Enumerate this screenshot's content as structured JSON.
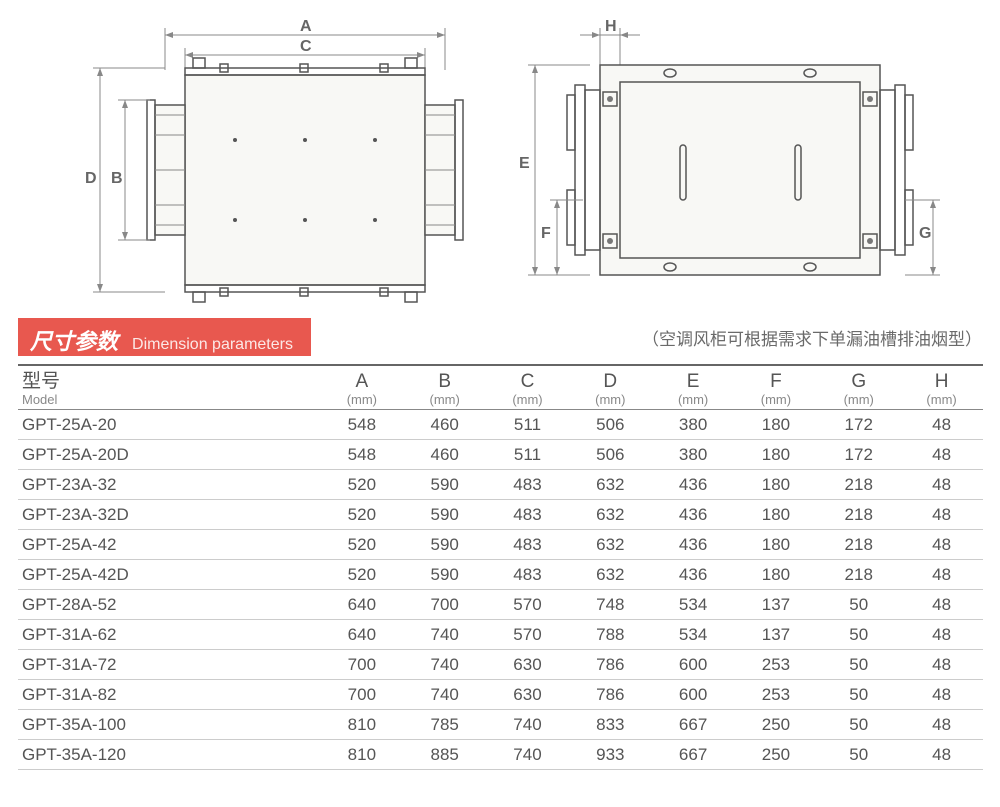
{
  "diagrams": {
    "left_labels": {
      "A": "A",
      "C": "C",
      "D": "D",
      "B": "B"
    },
    "right_labels": {
      "H": "H",
      "E": "E",
      "F": "F",
      "G": "G"
    }
  },
  "header": {
    "title_cn": "尺寸参数",
    "title_en": "Dimension parameters",
    "note": "（空调风柜可根据需求下单漏油槽排油烟型）"
  },
  "table": {
    "columns": [
      {
        "main": "型号",
        "sub": "Model"
      },
      {
        "main": "A",
        "sub": "(mm)"
      },
      {
        "main": "B",
        "sub": "(mm)"
      },
      {
        "main": "C",
        "sub": "(mm)"
      },
      {
        "main": "D",
        "sub": "(mm)"
      },
      {
        "main": "E",
        "sub": "(mm)"
      },
      {
        "main": "F",
        "sub": "(mm)"
      },
      {
        "main": "G",
        "sub": "(mm)"
      },
      {
        "main": "H",
        "sub": "(mm)"
      }
    ],
    "rows": [
      [
        "GPT-25A-20",
        "548",
        "460",
        "511",
        "506",
        "380",
        "180",
        "172",
        "48"
      ],
      [
        "GPT-25A-20D",
        "548",
        "460",
        "511",
        "506",
        "380",
        "180",
        "172",
        "48"
      ],
      [
        "GPT-23A-32",
        "520",
        "590",
        "483",
        "632",
        "436",
        "180",
        "218",
        "48"
      ],
      [
        "GPT-23A-32D",
        "520",
        "590",
        "483",
        "632",
        "436",
        "180",
        "218",
        "48"
      ],
      [
        "GPT-25A-42",
        "520",
        "590",
        "483",
        "632",
        "436",
        "180",
        "218",
        "48"
      ],
      [
        "GPT-25A-42D",
        "520",
        "590",
        "483",
        "632",
        "436",
        "180",
        "218",
        "48"
      ],
      [
        "GPT-28A-52",
        "640",
        "700",
        "570",
        "748",
        "534",
        "137",
        "50",
        "48"
      ],
      [
        "GPT-31A-62",
        "640",
        "740",
        "570",
        "788",
        "534",
        "137",
        "50",
        "48"
      ],
      [
        "GPT-31A-72",
        "700",
        "740",
        "630",
        "786",
        "600",
        "253",
        "50",
        "48"
      ],
      [
        "GPT-31A-82",
        "700",
        "740",
        "630",
        "786",
        "600",
        "253",
        "50",
        "48"
      ],
      [
        "GPT-35A-100",
        "810",
        "785",
        "740",
        "833",
        "667",
        "250",
        "50",
        "48"
      ],
      [
        "GPT-35A-120",
        "810",
        "885",
        "740",
        "933",
        "667",
        "250",
        "50",
        "48"
      ]
    ]
  },
  "colors": {
    "accent": "#e8584f",
    "text": "#5a5a5a",
    "border": "#888888",
    "light_fill": "#f8f8f5"
  }
}
